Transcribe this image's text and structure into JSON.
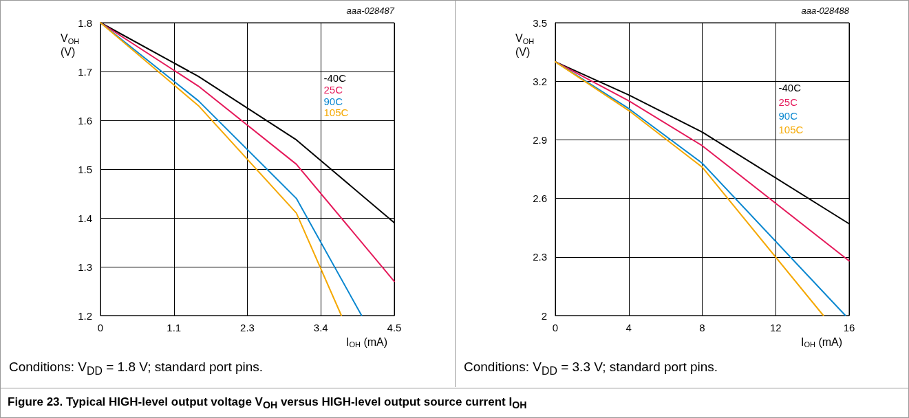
{
  "chart_data": [
    {
      "type": "line",
      "title": "Figure 23.  Typical HIGH-level output voltage V$_{OH}$ versus HIGH-level output source current I$_{OH}$",
      "xlabel": "I$_{OH}$ (mA)",
      "ylabel": "V$_{OH}$\n(V)",
      "annotations": [
        "aaa-028487",
        "Conditions: V$_{DD}$ = 1.8 V; standard port pins."
      ],
      "xlim": [
        0,
        4.5
      ],
      "xticks": [
        0,
        {
          "value": 1.125,
          "label": "1.1"
        },
        {
          "value": 2.25,
          "label": "2.3"
        },
        {
          "value": 3.375,
          "label": "3.4"
        },
        4.5
      ],
      "ylim": [
        1.2,
        1.8
      ],
      "yticks": [
        1.2,
        1.3,
        1.4,
        1.5,
        1.6,
        1.7,
        1.8
      ],
      "grid": true,
      "legend": false,
      "marker": "none",
      "line_style": "solid",
      "series": [
        {
          "name": "-40C",
          "color": "#000000",
          "x": [
            0,
            1.5,
            3.0,
            4.5
          ],
          "values": [
            1.8,
            1.69,
            1.56,
            1.39
          ]
        },
        {
          "name": "25C",
          "color": "#e5195a",
          "x": [
            0,
            1.5,
            3.0,
            4.5
          ],
          "values": [
            1.8,
            1.67,
            1.51,
            1.27
          ]
        },
        {
          "name": "90C",
          "color": "#0a87d0",
          "x": [
            0,
            1.5,
            3.0,
            4.0
          ],
          "values": [
            1.8,
            1.64,
            1.44,
            1.2
          ]
        },
        {
          "name": "105C",
          "color": "#f5a800",
          "x": [
            0,
            1.5,
            3.0,
            3.69
          ],
          "values": [
            1.8,
            1.63,
            1.41,
            1.2
          ]
        }
      ]
    },
    {
      "type": "line",
      "xlabel": "I$_{OH}$ (mA)",
      "ylabel": "V$_{OH}$\n(V)",
      "annotations": [
        "aaa-028488",
        "Conditions: V$_{DD}$ = 3.3 V; standard port pins."
      ],
      "xlim": [
        0,
        16
      ],
      "xticks": [
        0,
        4,
        8,
        12,
        16
      ],
      "ylim": [
        2,
        3.5
      ],
      "yticks": [
        2,
        2.3,
        2.6,
        2.9,
        3.2,
        3.5
      ],
      "grid": true,
      "legend": false,
      "marker": "none",
      "line_style": "solid",
      "series": [
        {
          "name": "-40C",
          "color": "#000000",
          "x": [
            0,
            4,
            8,
            16
          ],
          "values": [
            3.3,
            3.13,
            2.94,
            2.47
          ]
        },
        {
          "name": "25C",
          "color": "#e5195a",
          "x": [
            0,
            4,
            8,
            16
          ],
          "values": [
            3.3,
            3.1,
            2.87,
            2.28
          ]
        },
        {
          "name": "90C",
          "color": "#0a87d0",
          "x": [
            0,
            4,
            8,
            15.8
          ],
          "values": [
            3.3,
            3.06,
            2.78,
            2.0
          ]
        },
        {
          "name": "105C",
          "color": "#f5a800",
          "x": [
            0,
            4,
            8,
            14.6
          ],
          "values": [
            3.3,
            3.05,
            2.76,
            2.0
          ]
        }
      ]
    }
  ]
}
